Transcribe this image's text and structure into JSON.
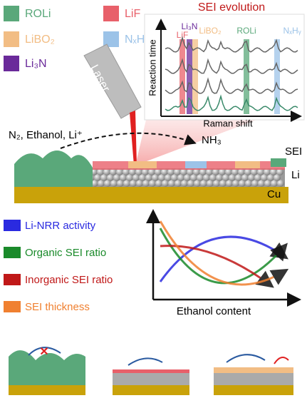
{
  "legend_top": {
    "items": [
      {
        "label": "ROLi",
        "color": "#5aa87a"
      },
      {
        "label": "LiF",
        "color": "#e8606a"
      },
      {
        "label": "LiBO₂",
        "color": "#f2bd84"
      },
      {
        "label": "NₓHᵧ",
        "color": "#9cc3e8"
      },
      {
        "label": "Li₃N",
        "color": "#6a2a9a"
      }
    ]
  },
  "laser": "Laser",
  "inset": {
    "title": "SEI evolution",
    "y_label": "Reaction time",
    "x_label": "Raman shift",
    "bands": [
      {
        "label": "LiF",
        "color": "#e8606a"
      },
      {
        "label": "Li₃N",
        "color": "#6a2a9a"
      },
      {
        "label": "LiBO₂",
        "color": "#f2bd84"
      },
      {
        "label": "ROLi",
        "color": "#5aa87a"
      },
      {
        "label": "NₓHᵧ",
        "color": "#9cc3e8"
      }
    ]
  },
  "scheme": {
    "reactants": "N₂, Ethanol, Li⁺",
    "product": "NH₃",
    "sei": "SEI",
    "li": "Li",
    "cu": "Cu"
  },
  "legend_bottom": {
    "items": [
      {
        "label": "Li-NRR activity",
        "color": "#2a2ae0"
      },
      {
        "label": "Organic SEI ratio",
        "color": "#1a8a2a"
      },
      {
        "label": "Inorganic SEI ratio",
        "color": "#c01818"
      },
      {
        "label": "SEI thickness",
        "color": "#f08030"
      }
    ]
  },
  "trend_axis": "Ethanol content"
}
